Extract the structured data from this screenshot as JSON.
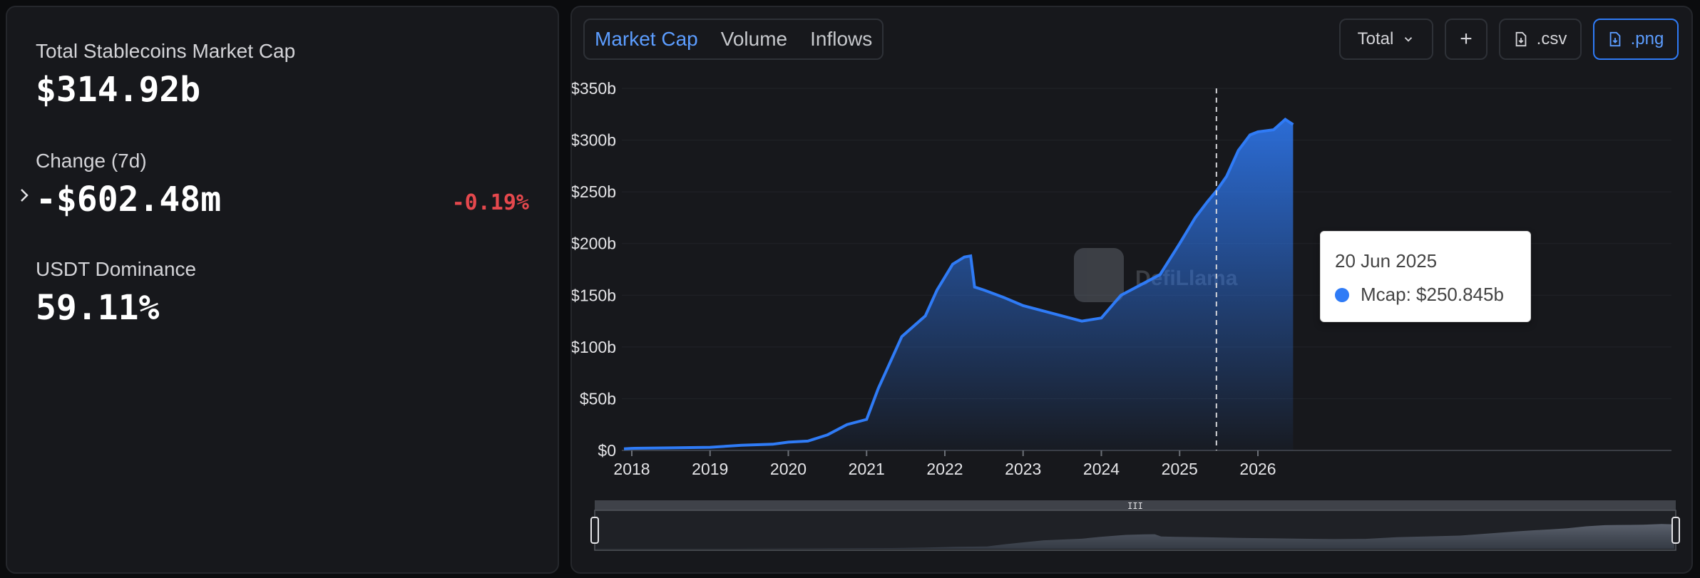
{
  "stats": {
    "total_label": "Total Stablecoins Market Cap",
    "total_value": "$314.92b",
    "change_label": "Change (7d)",
    "change_value": "-$602.48m",
    "change_pct": "-0.19%",
    "dominance_label": "USDT Dominance",
    "dominance_value": "59.11%"
  },
  "tabs": [
    "Market Cap",
    "Volume",
    "Inflows"
  ],
  "toolbar": {
    "select_value": "Total",
    "add_label": "+",
    "csv_label": ".csv",
    "png_label": ".png"
  },
  "tooltip": {
    "date": "20 Jun 2025",
    "text": "Mcap: $250.845b"
  },
  "watermark": "DefiLlama",
  "colors": {
    "accent": "#2f7bf6",
    "negative": "#e5484d",
    "panel": "#17181c"
  },
  "chart_data": {
    "type": "area",
    "x_axis_ticks": [
      "2018",
      "2019",
      "2020",
      "2021",
      "2022",
      "2023",
      "2024",
      "2025",
      "2026"
    ],
    "y_axis_ticks": [
      "$0",
      "$50b",
      "$100b",
      "$150b",
      "$200b",
      "$250b",
      "$300b",
      "$350b"
    ],
    "ylim": [
      0,
      350
    ],
    "y_unit": "billions USD",
    "grid": true,
    "series": [
      {
        "name": "Mcap",
        "color": "#2f7bf6",
        "x": [
          2017.9,
          2018.0,
          2018.5,
          2019.0,
          2019.4,
          2019.8,
          2020.0,
          2020.25,
          2020.5,
          2020.75,
          2021.0,
          2021.15,
          2021.3,
          2021.45,
          2021.6,
          2021.75,
          2021.9,
          2022.1,
          2022.25,
          2022.33,
          2022.38,
          2022.5,
          2022.75,
          2023.0,
          2023.25,
          2023.5,
          2023.75,
          2024.0,
          2024.25,
          2024.5,
          2024.75,
          2025.0,
          2025.2,
          2025.35,
          2025.47,
          2025.6,
          2025.75,
          2025.9,
          2026.0,
          2026.2,
          2026.35,
          2026.45
        ],
        "values": [
          1.5,
          2,
          2.5,
          3,
          5,
          6,
          8,
          9,
          15,
          25,
          30,
          60,
          85,
          110,
          120,
          130,
          155,
          180,
          187,
          188,
          158,
          155,
          148,
          140,
          135,
          130,
          125,
          128,
          150,
          160,
          170,
          200,
          225,
          240,
          250.845,
          265,
          290,
          305,
          308,
          310,
          320,
          315
        ]
      }
    ],
    "tooltip": {
      "date": "20 Jun 2025",
      "series": "Mcap",
      "value": "$250.845b"
    }
  }
}
